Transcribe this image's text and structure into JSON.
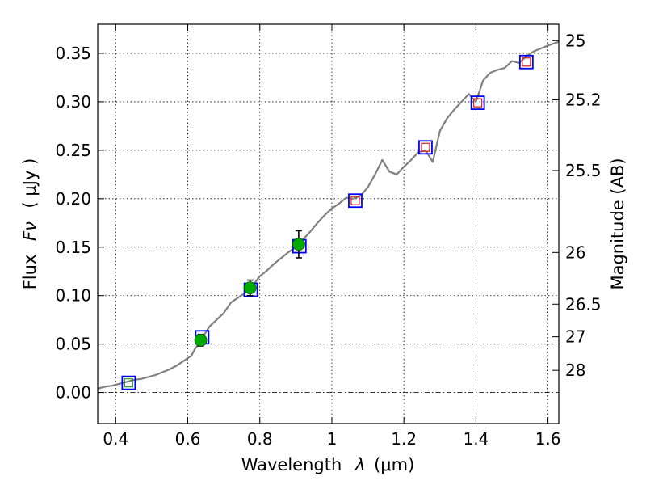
{
  "chart_data": {
    "type": "scatter",
    "xlabel": "Wavelength",
    "xlabel_symbol": "λ",
    "xlabel_unit": "(μm)",
    "ylabel": "Flux",
    "ylabel_symbol": "Fν",
    "ylabel_unit": "( μJy )",
    "ylabel_right": "Magnitude (AB)",
    "xlim": [
      0.35,
      1.63
    ],
    "ylim": [
      -0.032,
      0.38
    ],
    "grid": true,
    "zero_line": true,
    "x_ticks": [
      {
        "value": 0.4,
        "label": "0.4"
      },
      {
        "value": 0.6,
        "label": "0.6"
      },
      {
        "value": 0.8,
        "label": "0.8"
      },
      {
        "value": 1.0,
        "label": "1"
      },
      {
        "value": 1.2,
        "label": "1.2"
      },
      {
        "value": 1.4,
        "label": "1.4"
      },
      {
        "value": 1.6,
        "label": "1.6"
      }
    ],
    "y_ticks": [
      {
        "value": 0.0,
        "label": "0.00"
      },
      {
        "value": 0.05,
        "label": "0.05"
      },
      {
        "value": 0.1,
        "label": "0.10"
      },
      {
        "value": 0.15,
        "label": "0.15"
      },
      {
        "value": 0.2,
        "label": "0.20"
      },
      {
        "value": 0.25,
        "label": "0.25"
      },
      {
        "value": 0.3,
        "label": "0.30"
      },
      {
        "value": 0.35,
        "label": "0.35"
      }
    ],
    "right_ticks": [
      {
        "mag": 25,
        "label": "25"
      },
      {
        "mag": 25.2,
        "label": "25.2"
      },
      {
        "mag": 25.5,
        "label": "25.5"
      },
      {
        "mag": 26,
        "label": "26"
      },
      {
        "mag": 26.5,
        "label": "26.5"
      },
      {
        "mag": 27,
        "label": "27"
      },
      {
        "mag": 28,
        "label": "28"
      }
    ],
    "series": [
      {
        "kind": "line",
        "color": "#808080",
        "points": [
          [
            0.35,
            0.004
          ],
          [
            0.37,
            0.006
          ],
          [
            0.39,
            0.007
          ],
          [
            0.41,
            0.009
          ],
          [
            0.43,
            0.011
          ],
          [
            0.45,
            0.013
          ],
          [
            0.47,
            0.014
          ],
          [
            0.49,
            0.016
          ],
          [
            0.51,
            0.018
          ],
          [
            0.53,
            0.021
          ],
          [
            0.55,
            0.024
          ],
          [
            0.57,
            0.028
          ],
          [
            0.59,
            0.033
          ],
          [
            0.61,
            0.038
          ],
          [
            0.62,
            0.045
          ],
          [
            0.63,
            0.05
          ],
          [
            0.64,
            0.057
          ],
          [
            0.65,
            0.062
          ],
          [
            0.66,
            0.068
          ],
          [
            0.68,
            0.075
          ],
          [
            0.7,
            0.082
          ],
          [
            0.72,
            0.093
          ],
          [
            0.74,
            0.098
          ],
          [
            0.76,
            0.103
          ],
          [
            0.78,
            0.11
          ],
          [
            0.8,
            0.12
          ],
          [
            0.82,
            0.126
          ],
          [
            0.84,
            0.133
          ],
          [
            0.86,
            0.139
          ],
          [
            0.88,
            0.145
          ],
          [
            0.9,
            0.15
          ],
          [
            0.92,
            0.158
          ],
          [
            0.94,
            0.166
          ],
          [
            0.96,
            0.175
          ],
          [
            0.98,
            0.183
          ],
          [
            1.0,
            0.19
          ],
          [
            1.02,
            0.195
          ],
          [
            1.04,
            0.201
          ],
          [
            1.06,
            0.2
          ],
          [
            1.08,
            0.203
          ],
          [
            1.1,
            0.212
          ],
          [
            1.12,
            0.225
          ],
          [
            1.14,
            0.24
          ],
          [
            1.16,
            0.228
          ],
          [
            1.18,
            0.225
          ],
          [
            1.2,
            0.233
          ],
          [
            1.22,
            0.24
          ],
          [
            1.24,
            0.248
          ],
          [
            1.26,
            0.25
          ],
          [
            1.28,
            0.238
          ],
          [
            1.3,
            0.27
          ],
          [
            1.32,
            0.283
          ],
          [
            1.34,
            0.292
          ],
          [
            1.36,
            0.3
          ],
          [
            1.38,
            0.308
          ],
          [
            1.4,
            0.3
          ],
          [
            1.42,
            0.322
          ],
          [
            1.44,
            0.33
          ],
          [
            1.46,
            0.333
          ],
          [
            1.48,
            0.335
          ],
          [
            1.5,
            0.342
          ],
          [
            1.52,
            0.34
          ],
          [
            1.54,
            0.347
          ],
          [
            1.56,
            0.352
          ],
          [
            1.58,
            0.355
          ],
          [
            1.6,
            0.358
          ],
          [
            1.63,
            0.362
          ]
        ]
      },
      {
        "kind": "squares",
        "color": "#0000ff",
        "points": [
          [
            0.436,
            0.01
          ],
          [
            0.64,
            0.057
          ],
          [
            0.775,
            0.106
          ],
          [
            0.91,
            0.151
          ],
          [
            1.065,
            0.198
          ],
          [
            1.26,
            0.253
          ],
          [
            1.405,
            0.299
          ],
          [
            1.54,
            0.341
          ]
        ]
      },
      {
        "kind": "inner_squares",
        "color": "#e31a1c",
        "points": [
          [
            1.065,
            0.198
          ],
          [
            1.26,
            0.253
          ],
          [
            1.405,
            0.299
          ],
          [
            1.54,
            0.341
          ]
        ]
      },
      {
        "kind": "inner_squares",
        "color": "#2ca02c",
        "points": [
          [
            0.436,
            0.01
          ]
        ]
      },
      {
        "kind": "errorbar_points",
        "color": "#00aa00",
        "points": [
          {
            "x": 0.636,
            "y": 0.054,
            "err": 0.006
          },
          {
            "x": 0.773,
            "y": 0.108,
            "err": 0.008
          },
          {
            "x": 0.908,
            "y": 0.153,
            "err": 0.014
          }
        ]
      }
    ]
  }
}
